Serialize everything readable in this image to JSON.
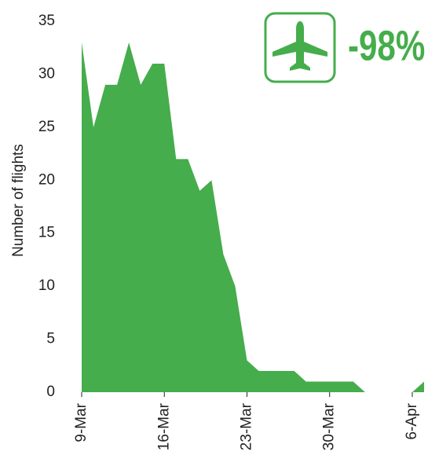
{
  "chart_data": {
    "type": "area",
    "y_label": "Number of flights",
    "annotation": "-98%",
    "categories": [
      "9-Mar",
      null,
      null,
      null,
      null,
      null,
      null,
      "16-Mar",
      null,
      null,
      null,
      null,
      null,
      null,
      "23-Mar",
      null,
      null,
      null,
      null,
      null,
      null,
      "30-Mar",
      null,
      null,
      null,
      null,
      null,
      null,
      "6-Apr",
      null
    ],
    "values": [
      33,
      25,
      29,
      29,
      33,
      29,
      31,
      31,
      22,
      22,
      19,
      20,
      13,
      10,
      3,
      2,
      2,
      2,
      2,
      1,
      1,
      1,
      1,
      1,
      0,
      0,
      0,
      0,
      0,
      1
    ],
    "color": "#45ad4b",
    "ylim": [
      0,
      35
    ],
    "yticks": [
      0,
      5,
      10,
      15,
      20,
      25,
      30,
      35
    ],
    "grid": false
  }
}
